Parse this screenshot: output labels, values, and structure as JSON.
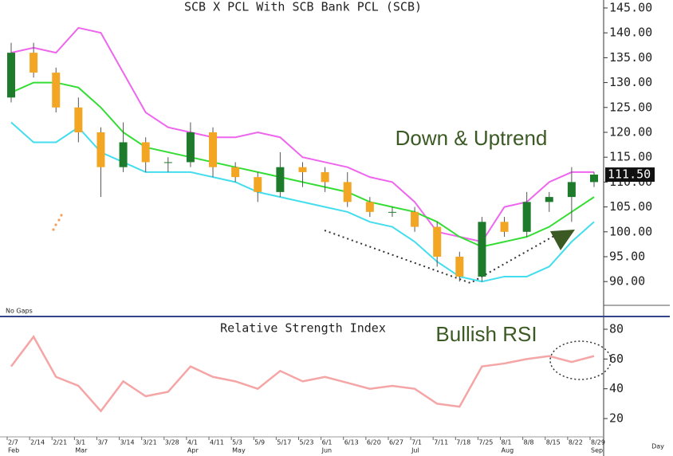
{
  "chart_data": [
    {
      "type": "candlestick",
      "title": "SCB X PCL With SCB Bank PCL (SCB)",
      "categories": [
        "2/7",
        "2/14",
        "2/21",
        "3/1",
        "3/7",
        "3/14",
        "3/21",
        "3/28",
        "4/1",
        "4/11",
        "5/3",
        "5/9",
        "5/17",
        "5/23",
        "6/1",
        "6/13",
        "6/20",
        "6/27",
        "7/1",
        "7/11",
        "7/18",
        "7/25",
        "8/1",
        "8/8",
        "8/15",
        "8/22",
        "8/29"
      ],
      "month_labels": [
        "Feb",
        null,
        null,
        "Mar",
        null,
        null,
        null,
        null,
        "Apr",
        null,
        "May",
        null,
        null,
        null,
        "Jun",
        null,
        null,
        null,
        "Jul",
        null,
        null,
        null,
        "Aug",
        null,
        null,
        null,
        "Sep"
      ],
      "open": [
        127,
        136,
        132,
        125,
        120,
        113,
        118,
        114,
        114,
        120,
        113,
        111,
        108,
        113,
        112,
        110,
        106,
        104,
        104,
        101,
        95,
        91,
        102,
        100,
        106,
        107,
        110
      ],
      "high": [
        138,
        138,
        133,
        127,
        121,
        122,
        119,
        115,
        122,
        121,
        114,
        112,
        116,
        114,
        113,
        112,
        107,
        105,
        105,
        102,
        96,
        103,
        103,
        108,
        108,
        113,
        112
      ],
      "low": [
        126,
        131,
        124,
        118,
        107,
        112,
        112,
        112,
        113,
        111,
        110,
        106,
        107,
        109,
        108,
        105,
        103,
        103,
        100,
        93,
        90,
        90,
        99,
        99,
        104,
        102,
        109
      ],
      "close": [
        136,
        132,
        125,
        120,
        113,
        118,
        114,
        114,
        120,
        113,
        111,
        108,
        113,
        112,
        110,
        106,
        104,
        104,
        101,
        95,
        91,
        102,
        100,
        106,
        107,
        110,
        111.5
      ],
      "up_color": "#1e7b2c",
      "down_color": "#f2a623",
      "bands": [
        {
          "color": "#ee66ee",
          "values": [
            136,
            137,
            136,
            141,
            140,
            132,
            124,
            121,
            120,
            119,
            119,
            120,
            119,
            115,
            114,
            113,
            111,
            110,
            106,
            100,
            99,
            98,
            105,
            106,
            110,
            112,
            112
          ]
        },
        {
          "color": "#33dd33",
          "values": [
            128,
            130,
            130,
            129,
            125,
            120,
            117,
            116,
            115,
            114,
            113,
            112,
            111,
            110,
            109,
            108,
            106,
            105,
            104,
            102,
            99,
            97,
            98,
            99,
            101,
            104,
            107
          ]
        },
        {
          "color": "#44ddee",
          "values": [
            122,
            118,
            118,
            121,
            116,
            114,
            112,
            112,
            112,
            111,
            110,
            108,
            107,
            106,
            105,
            104,
            102,
            101,
            98,
            94,
            91,
            90,
            91,
            91,
            93,
            98,
            102
          ]
        }
      ],
      "last_price_label": "111.50",
      "ylim": [
        83.3,
        146.6
      ],
      "yticks": [
        {
          "value": 90,
          "label": "90.00"
        },
        {
          "value": 95,
          "label": "95.00"
        },
        {
          "value": 100,
          "label": "100.00"
        },
        {
          "value": 105,
          "label": "105.00"
        },
        {
          "value": 110,
          "label": "110.00"
        },
        {
          "value": 115,
          "label": "115.00"
        },
        {
          "value": 120,
          "label": "120.00"
        },
        {
          "value": 125,
          "label": "125.00"
        },
        {
          "value": 130,
          "label": "130.00"
        },
        {
          "value": 135,
          "label": "135.00"
        },
        {
          "value": 140,
          "label": "140.00"
        },
        {
          "value": 145,
          "label": "145.00"
        }
      ],
      "annotation": "Down & Uptrend",
      "note": "No Gaps",
      "x_label": "Day"
    },
    {
      "type": "line",
      "title": "Relative Strength Index",
      "color": "#f5a5a5",
      "values": [
        55,
        75,
        48,
        42,
        25,
        45,
        35,
        38,
        55,
        48,
        45,
        40,
        52,
        45,
        48,
        44,
        40,
        42,
        40,
        30,
        28,
        55,
        57,
        60,
        62,
        58,
        62
      ],
      "ylim": [
        7.7,
        87.5
      ],
      "yticks": [
        20,
        40,
        60,
        80
      ],
      "annotation": "Bullish RSI"
    }
  ]
}
